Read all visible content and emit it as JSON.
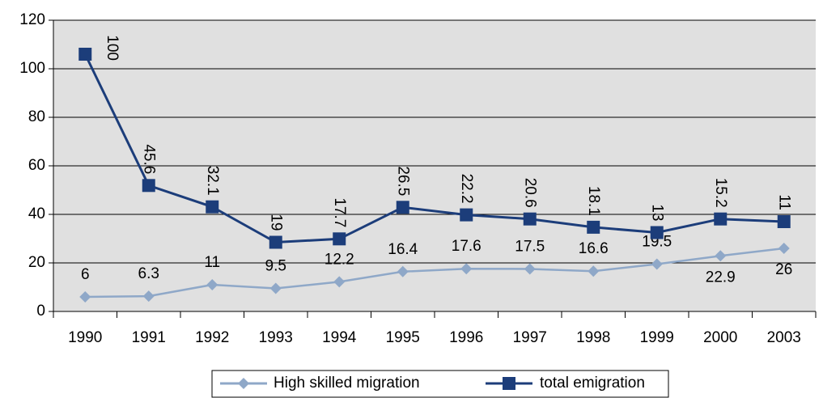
{
  "chart_data": {
    "type": "line",
    "stacked": true,
    "categories": [
      "1990",
      "1991",
      "1992",
      "1993",
      "1994",
      "1995",
      "1996",
      "1997",
      "1998",
      "1999",
      "2000",
      "2003"
    ],
    "series": [
      {
        "name": "High skilled migration",
        "color": "#8fa8c8",
        "marker": "diamond",
        "values": [
          6,
          6.3,
          11,
          9.5,
          12.2,
          16.4,
          17.6,
          17.5,
          16.6,
          19.5,
          22.9,
          26
        ]
      },
      {
        "name": "total emigration",
        "color": "#1c3d7a",
        "marker": "square",
        "values": [
          100,
          45.6,
          32.1,
          19,
          17.7,
          26.5,
          22.2,
          20.6,
          18.1,
          13,
          15.2,
          11
        ]
      }
    ],
    "ylim": [
      0,
      120
    ],
    "yticks": [
      0,
      20,
      40,
      60,
      80,
      100,
      120
    ],
    "grid": true,
    "legend": "bottom"
  }
}
